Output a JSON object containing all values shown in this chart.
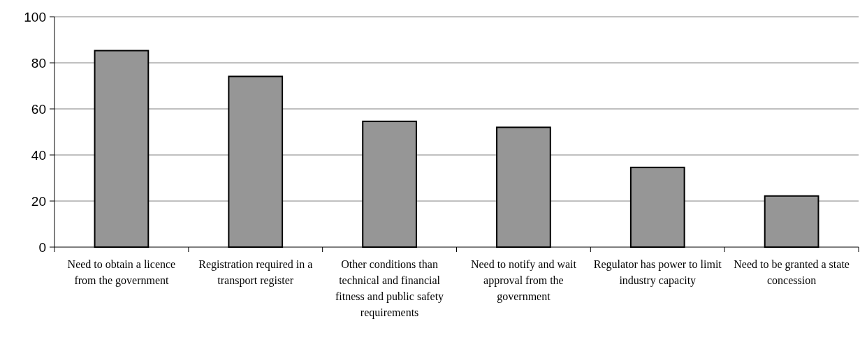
{
  "chart_data": {
    "type": "bar",
    "categories": [
      "Need to obtain a licence from the government",
      "Registration required in a transport register",
      "Other conditions than technical and financial fitness and public safety requirements",
      "Need to notify and wait approval from the government",
      "Regulator has power to limit industry capacity",
      "Need to be granted a state concession"
    ],
    "values": [
      85.3,
      74.1,
      54.6,
      52.0,
      34.6,
      22.2
    ],
    "color": "#969696",
    "ylim": [
      0,
      100
    ],
    "yticks": [
      0,
      20,
      40,
      60,
      80,
      100
    ],
    "grid": "y"
  }
}
